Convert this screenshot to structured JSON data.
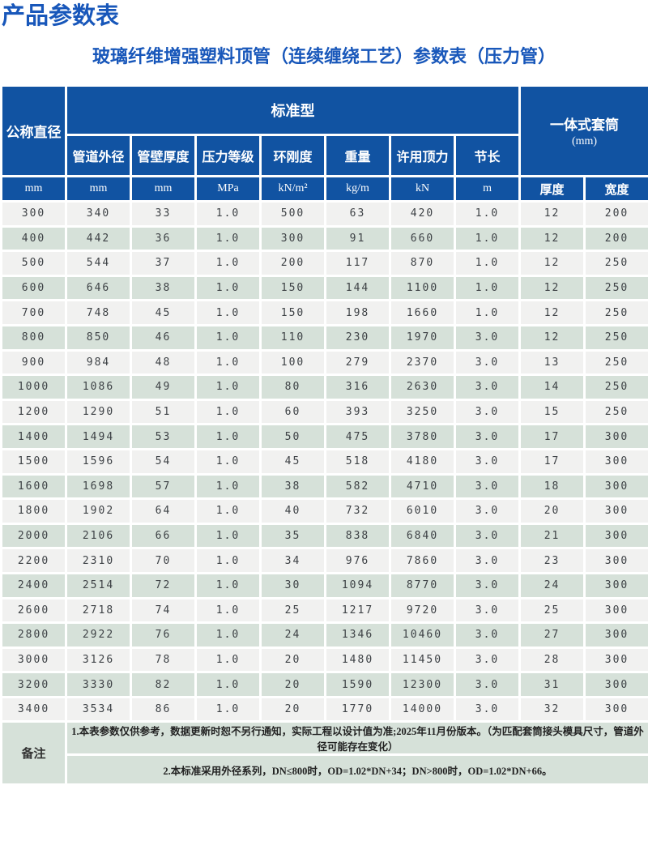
{
  "page": {
    "title": "产品参数表",
    "subtitle": "玻璃纤维增强塑料顶管（连续缠绕工艺）参数表（压力管）"
  },
  "colors": {
    "header_blue": "#1153a2",
    "row_light": "#f1f1f0",
    "row_green": "#d6e1d9",
    "title_blue": "#1857ba"
  },
  "table": {
    "header": {
      "nominal_diameter": "公称直径",
      "standard_type": "标准型",
      "sleeve": "一体式套筒",
      "sleeve_unit": "(mm)",
      "sub_columns": [
        "管道外径",
        "管壁厚度",
        "压力等级",
        "环刚度",
        "重量",
        "许用顶力",
        "节长"
      ],
      "units": [
        "mm",
        "mm",
        "mm",
        "MPa",
        "kN/m²",
        "kg/m",
        "kN",
        "m",
        "厚度",
        "宽度"
      ]
    },
    "rows": [
      [
        "300",
        "340",
        "33",
        "1.0",
        "500",
        "63",
        "420",
        "1.0",
        "12",
        "200"
      ],
      [
        "400",
        "442",
        "36",
        "1.0",
        "300",
        "91",
        "660",
        "1.0",
        "12",
        "200"
      ],
      [
        "500",
        "544",
        "37",
        "1.0",
        "200",
        "117",
        "870",
        "1.0",
        "12",
        "250"
      ],
      [
        "600",
        "646",
        "38",
        "1.0",
        "150",
        "144",
        "1100",
        "1.0",
        "12",
        "250"
      ],
      [
        "700",
        "748",
        "45",
        "1.0",
        "150",
        "198",
        "1660",
        "1.0",
        "12",
        "250"
      ],
      [
        "800",
        "850",
        "46",
        "1.0",
        "110",
        "230",
        "1970",
        "3.0",
        "12",
        "250"
      ],
      [
        "900",
        "984",
        "48",
        "1.0",
        "100",
        "279",
        "2370",
        "3.0",
        "13",
        "250"
      ],
      [
        "1000",
        "1086",
        "49",
        "1.0",
        "80",
        "316",
        "2630",
        "3.0",
        "14",
        "250"
      ],
      [
        "1200",
        "1290",
        "51",
        "1.0",
        "60",
        "393",
        "3250",
        "3.0",
        "15",
        "250"
      ],
      [
        "1400",
        "1494",
        "53",
        "1.0",
        "50",
        "475",
        "3780",
        "3.0",
        "17",
        "300"
      ],
      [
        "1500",
        "1596",
        "54",
        "1.0",
        "45",
        "518",
        "4180",
        "3.0",
        "17",
        "300"
      ],
      [
        "1600",
        "1698",
        "57",
        "1.0",
        "38",
        "582",
        "4710",
        "3.0",
        "18",
        "300"
      ],
      [
        "1800",
        "1902",
        "64",
        "1.0",
        "40",
        "732",
        "6010",
        "3.0",
        "20",
        "300"
      ],
      [
        "2000",
        "2106",
        "66",
        "1.0",
        "35",
        "838",
        "6840",
        "3.0",
        "21",
        "300"
      ],
      [
        "2200",
        "2310",
        "70",
        "1.0",
        "34",
        "976",
        "7860",
        "3.0",
        "23",
        "300"
      ],
      [
        "2400",
        "2514",
        "72",
        "1.0",
        "30",
        "1094",
        "8770",
        "3.0",
        "24",
        "300"
      ],
      [
        "2600",
        "2718",
        "74",
        "1.0",
        "25",
        "1217",
        "9720",
        "3.0",
        "25",
        "300"
      ],
      [
        "2800",
        "2922",
        "76",
        "1.0",
        "24",
        "1346",
        "10460",
        "3.0",
        "27",
        "300"
      ],
      [
        "3000",
        "3126",
        "78",
        "1.0",
        "20",
        "1480",
        "11450",
        "3.0",
        "28",
        "300"
      ],
      [
        "3200",
        "3330",
        "82",
        "1.0",
        "20",
        "1590",
        "12300",
        "3.0",
        "31",
        "300"
      ],
      [
        "3400",
        "3534",
        "86",
        "1.0",
        "20",
        "1770",
        "14000",
        "3.0",
        "32",
        "300"
      ]
    ],
    "remarks": {
      "label": "备注",
      "notes": [
        "1.本表参数仅供参考，数据更新时恕不另行通知，实际工程以设计值为准;2025年11月份版本。（为匹配套筒接头模具尺寸，管道外径可能存在变化）",
        "2.本标准采用外径系列，DN≤800时，OD=1.02*DN+34；DN>800时，OD=1.02*DN+66。"
      ]
    }
  }
}
